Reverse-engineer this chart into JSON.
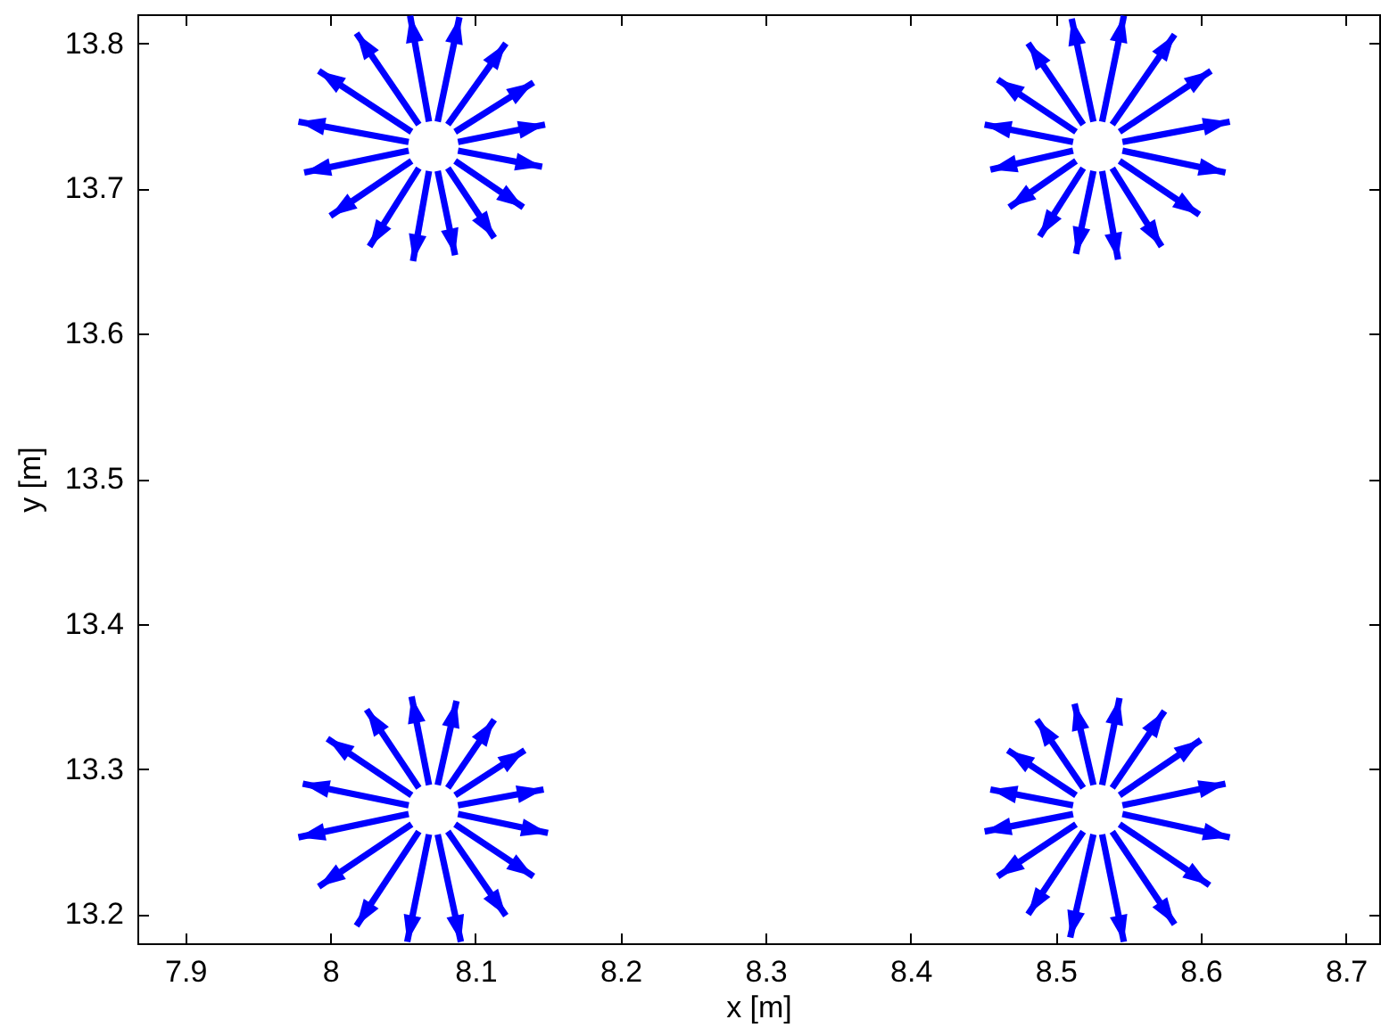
{
  "chart_data": {
    "type": "line",
    "xlabel": "x [m]",
    "ylabel": "y [m]",
    "xlim": [
      7.867,
      8.723
    ],
    "ylim": [
      13.18,
      13.82
    ],
    "xticks": [
      7.9,
      8,
      8.1,
      8.2,
      8.3,
      8.4,
      8.5,
      8.6,
      8.7
    ],
    "yticks": [
      13.2,
      13.3,
      13.4,
      13.5,
      13.6,
      13.7,
      13.8
    ],
    "series": [
      {
        "x": [
          8.068,
          8.055
        ],
        "values": [
          13.746,
          13.819
        ],
        "color": "#0000ff"
      },
      {
        "x": [
          8.074,
          8.089
        ],
        "values": [
          13.746,
          13.818
        ],
        "color": "#0000ff"
      },
      {
        "x": [
          8.081,
          8.121
        ],
        "values": [
          13.744,
          13.8
        ],
        "color": "#0000ff"
      },
      {
        "x": [
          8.086,
          8.14
        ],
        "values": [
          13.739,
          13.773
        ],
        "color": "#0000ff"
      },
      {
        "x": [
          8.088,
          8.148
        ],
        "values": [
          13.732,
          13.744
        ],
        "color": "#0000ff"
      },
      {
        "x": [
          8.088,
          8.146
        ],
        "values": [
          13.726,
          13.715
        ],
        "color": "#0000ff"
      },
      {
        "x": [
          8.086,
          8.133
        ],
        "values": [
          13.719,
          13.687
        ],
        "color": "#0000ff"
      },
      {
        "x": [
          8.081,
          8.113
        ],
        "values": [
          13.714,
          13.666
        ],
        "color": "#0000ff"
      },
      {
        "x": [
          8.074,
          8.086
        ],
        "values": [
          13.712,
          13.654
        ],
        "color": "#0000ff"
      },
      {
        "x": [
          8.068,
          8.057
        ],
        "values": [
          13.712,
          13.65
        ],
        "color": "#0000ff"
      },
      {
        "x": [
          8.061,
          8.027
        ],
        "values": [
          13.714,
          13.66
        ],
        "color": "#0000ff"
      },
      {
        "x": [
          8.056,
          8
        ],
        "values": [
          13.719,
          13.681
        ],
        "color": "#0000ff"
      },
      {
        "x": [
          8.054,
          7.982
        ],
        "values": [
          13.726,
          13.711
        ],
        "color": "#0000ff"
      },
      {
        "x": [
          8.054,
          7.978
        ],
        "values": [
          13.732,
          13.746
        ],
        "color": "#0000ff"
      },
      {
        "x": [
          8.056,
          7.992
        ],
        "values": [
          13.739,
          13.781
        ],
        "color": "#0000ff"
      },
      {
        "x": [
          8.061,
          8.018
        ],
        "values": [
          13.744,
          13.807
        ],
        "color": "#0000ff"
      },
      {
        "x": [
          8.526,
          8.511
        ],
        "values": [
          13.746,
          13.817
        ],
        "color": "#0000ff"
      },
      {
        "x": [
          8.532,
          8.547
        ],
        "values": [
          13.746,
          13.819
        ],
        "color": "#0000ff"
      },
      {
        "x": [
          8.539,
          8.582
        ],
        "values": [
          13.744,
          13.806
        ],
        "color": "#0000ff"
      },
      {
        "x": [
          8.544,
          8.607
        ],
        "values": [
          13.739,
          13.781
        ],
        "color": "#0000ff"
      },
      {
        "x": [
          8.546,
          8.62
        ],
        "values": [
          13.732,
          13.746
        ],
        "color": "#0000ff"
      },
      {
        "x": [
          8.546,
          8.617
        ],
        "values": [
          13.726,
          13.711
        ],
        "color": "#0000ff"
      },
      {
        "x": [
          8.544,
          8.599
        ],
        "values": [
          13.719,
          13.682
        ],
        "color": "#0000ff"
      },
      {
        "x": [
          8.539,
          8.573
        ],
        "values": [
          13.714,
          13.66
        ],
        "color": "#0000ff"
      },
      {
        "x": [
          8.532,
          8.543
        ],
        "values": [
          13.712,
          13.651
        ],
        "color": "#0000ff"
      },
      {
        "x": [
          8.526,
          8.514
        ],
        "values": [
          13.712,
          13.655
        ],
        "color": "#0000ff"
      },
      {
        "x": [
          8.519,
          8.489
        ],
        "values": [
          13.714,
          13.667
        ],
        "color": "#0000ff"
      },
      {
        "x": [
          8.514,
          8.468
        ],
        "values": [
          13.719,
          13.687
        ],
        "color": "#0000ff"
      },
      {
        "x": [
          8.512,
          8.455
        ],
        "values": [
          13.726,
          13.713
        ],
        "color": "#0000ff"
      },
      {
        "x": [
          8.512,
          8.451
        ],
        "values": [
          13.732,
          13.744
        ],
        "color": "#0000ff"
      },
      {
        "x": [
          8.514,
          8.46
        ],
        "values": [
          13.739,
          13.775
        ],
        "color": "#0000ff"
      },
      {
        "x": [
          8.519,
          8.481
        ],
        "values": [
          13.744,
          13.8
        ],
        "color": "#0000ff"
      },
      {
        "x": [
          8.068,
          8.056
        ],
        "values": [
          13.289,
          13.35
        ],
        "color": "#0000ff"
      },
      {
        "x": [
          8.074,
          8.087
        ],
        "values": [
          13.289,
          13.347
        ],
        "color": "#0000ff"
      },
      {
        "x": [
          8.081,
          8.113
        ],
        "values": [
          13.287,
          13.334
        ],
        "color": "#0000ff"
      },
      {
        "x": [
          8.086,
          8.134
        ],
        "values": [
          13.282,
          13.313
        ],
        "color": "#0000ff"
      },
      {
        "x": [
          8.088,
          8.147
        ],
        "values": [
          13.275,
          13.286
        ],
        "color": "#0000ff"
      },
      {
        "x": [
          8.088,
          8.15
        ],
        "values": [
          13.269,
          13.256
        ],
        "color": "#0000ff"
      },
      {
        "x": [
          8.086,
          8.14
        ],
        "values": [
          13.262,
          13.226
        ],
        "color": "#0000ff"
      },
      {
        "x": [
          8.081,
          8.121
        ],
        "values": [
          13.257,
          13.199
        ],
        "color": "#0000ff"
      },
      {
        "x": [
          8.074,
          8.09
        ],
        "values": [
          13.255,
          13.181
        ],
        "color": "#0000ff"
      },
      {
        "x": [
          8.068,
          8.053
        ],
        "values": [
          13.255,
          13.181
        ],
        "color": "#0000ff"
      },
      {
        "x": [
          8.061,
          8.018
        ],
        "values": [
          13.257,
          13.192
        ],
        "color": "#0000ff"
      },
      {
        "x": [
          8.056,
          7.992
        ],
        "values": [
          13.262,
          13.219
        ],
        "color": "#0000ff"
      },
      {
        "x": [
          8.054,
          7.978
        ],
        "values": [
          13.269,
          13.253
        ],
        "color": "#0000ff"
      },
      {
        "x": [
          8.054,
          7.981
        ],
        "values": [
          13.275,
          13.29
        ],
        "color": "#0000ff"
      },
      {
        "x": [
          8.056,
          7.998
        ],
        "values": [
          13.282,
          13.321
        ],
        "color": "#0000ff"
      },
      {
        "x": [
          8.061,
          8.025
        ],
        "values": [
          13.287,
          13.341
        ],
        "color": "#0000ff"
      },
      {
        "x": [
          8.526,
          8.513
        ],
        "values": [
          13.289,
          13.345
        ],
        "color": "#0000ff"
      },
      {
        "x": [
          8.532,
          8.544
        ],
        "values": [
          13.289,
          13.349
        ],
        "color": "#0000ff"
      },
      {
        "x": [
          8.539,
          8.575
        ],
        "values": [
          13.287,
          13.34
        ],
        "color": "#0000ff"
      },
      {
        "x": [
          8.544,
          8.6
        ],
        "values": [
          13.282,
          13.32
        ],
        "color": "#0000ff"
      },
      {
        "x": [
          8.546,
          8.617
        ],
        "values": [
          13.275,
          13.29
        ],
        "color": "#0000ff"
      },
      {
        "x": [
          8.546,
          8.62
        ],
        "values": [
          13.269,
          13.253
        ],
        "color": "#0000ff"
      },
      {
        "x": [
          8.544,
          8.606
        ],
        "values": [
          13.262,
          13.22
        ],
        "color": "#0000ff"
      },
      {
        "x": [
          8.539,
          8.582
        ],
        "values": [
          13.257,
          13.193
        ],
        "color": "#0000ff"
      },
      {
        "x": [
          8.532,
          8.547
        ],
        "values": [
          13.255,
          13.181
        ],
        "color": "#0000ff"
      },
      {
        "x": [
          8.526,
          8.51
        ],
        "values": [
          13.255,
          13.184
        ],
        "color": "#0000ff"
      },
      {
        "x": [
          8.519,
          8.481
        ],
        "values": [
          13.257,
          13.2
        ],
        "color": "#0000ff"
      },
      {
        "x": [
          8.514,
          8.46
        ],
        "values": [
          13.262,
          13.226
        ],
        "color": "#0000ff"
      },
      {
        "x": [
          8.512,
          8.451
        ],
        "values": [
          13.269,
          13.257
        ],
        "color": "#0000ff"
      },
      {
        "x": [
          8.512,
          8.455
        ],
        "values": [
          13.275,
          13.286
        ],
        "color": "#0000ff"
      },
      {
        "x": [
          8.514,
          8.467
        ],
        "values": [
          13.282,
          13.313
        ],
        "color": "#0000ff"
      },
      {
        "x": [
          8.519,
          8.487
        ],
        "values": [
          13.287,
          13.334
        ],
        "color": "#0000ff"
      }
    ]
  }
}
